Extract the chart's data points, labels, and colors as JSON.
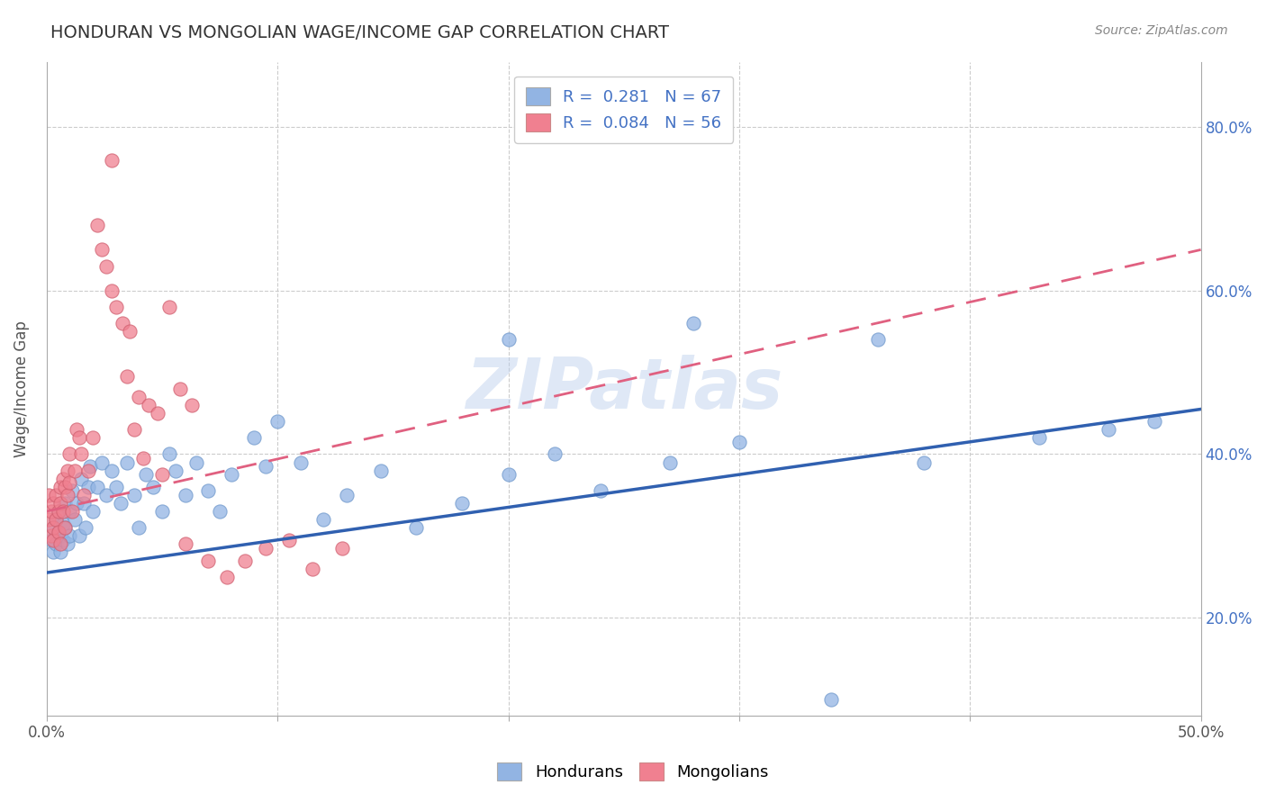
{
  "title": "HONDURAN VS MONGOLIAN WAGE/INCOME GAP CORRELATION CHART",
  "source_text": "Source: ZipAtlas.com",
  "xlabel_ticks": [
    "0.0%",
    "",
    "",
    "",
    "",
    "50.0%"
  ],
  "ylabel_ticks": [
    "20.0%",
    "40.0%",
    "60.0%",
    "80.0%"
  ],
  "xlim": [
    0.0,
    0.5
  ],
  "ylim": [
    0.08,
    0.88
  ],
  "legend1_text": "R =  0.281   N = 67",
  "legend2_text": "R =  0.084   N = 56",
  "honduran_color": "#92b4e3",
  "mongolian_color": "#f08090",
  "honduran_line_color": "#3060b0",
  "mongolian_line_color": "#e06080",
  "watermark": "ZIPatlas",
  "hondurans_label": "Hondurans",
  "mongolians_label": "Mongolians",
  "blue_line_y0": 0.255,
  "blue_line_y1": 0.455,
  "pink_line_y0": 0.33,
  "pink_line_y1": 0.65,
  "hondurans_x": [
    0.002,
    0.003,
    0.003,
    0.004,
    0.004,
    0.005,
    0.005,
    0.006,
    0.006,
    0.007,
    0.007,
    0.008,
    0.008,
    0.009,
    0.01,
    0.01,
    0.011,
    0.012,
    0.013,
    0.014,
    0.015,
    0.016,
    0.017,
    0.018,
    0.019,
    0.02,
    0.022,
    0.024,
    0.026,
    0.028,
    0.03,
    0.032,
    0.035,
    0.038,
    0.04,
    0.043,
    0.046,
    0.05,
    0.053,
    0.056,
    0.06,
    0.065,
    0.07,
    0.075,
    0.08,
    0.09,
    0.095,
    0.1,
    0.11,
    0.12,
    0.13,
    0.145,
    0.16,
    0.18,
    0.2,
    0.22,
    0.24,
    0.27,
    0.3,
    0.34,
    0.38,
    0.43,
    0.48,
    0.2,
    0.28,
    0.36,
    0.46
  ],
  "hondurans_y": [
    0.295,
    0.31,
    0.28,
    0.32,
    0.29,
    0.305,
    0.33,
    0.28,
    0.3,
    0.315,
    0.295,
    0.34,
    0.31,
    0.29,
    0.33,
    0.3,
    0.355,
    0.32,
    0.34,
    0.3,
    0.37,
    0.34,
    0.31,
    0.36,
    0.385,
    0.33,
    0.36,
    0.39,
    0.35,
    0.38,
    0.36,
    0.34,
    0.39,
    0.35,
    0.31,
    0.375,
    0.36,
    0.33,
    0.4,
    0.38,
    0.35,
    0.39,
    0.355,
    0.33,
    0.375,
    0.42,
    0.385,
    0.44,
    0.39,
    0.32,
    0.35,
    0.38,
    0.31,
    0.34,
    0.375,
    0.4,
    0.355,
    0.39,
    0.415,
    0.1,
    0.39,
    0.42,
    0.44,
    0.54,
    0.56,
    0.54,
    0.43
  ],
  "mongolians_x": [
    0.001,
    0.001,
    0.002,
    0.002,
    0.003,
    0.003,
    0.003,
    0.004,
    0.004,
    0.005,
    0.005,
    0.006,
    0.006,
    0.006,
    0.007,
    0.007,
    0.008,
    0.008,
    0.009,
    0.009,
    0.01,
    0.01,
    0.011,
    0.012,
    0.013,
    0.014,
    0.015,
    0.016,
    0.018,
    0.02,
    0.022,
    0.024,
    0.026,
    0.028,
    0.03,
    0.033,
    0.036,
    0.04,
    0.044,
    0.048,
    0.053,
    0.058,
    0.063,
    0.07,
    0.078,
    0.086,
    0.095,
    0.105,
    0.115,
    0.128,
    0.028,
    0.035,
    0.038,
    0.042,
    0.05,
    0.06
  ],
  "mongolians_y": [
    0.32,
    0.35,
    0.3,
    0.33,
    0.295,
    0.34,
    0.31,
    0.32,
    0.35,
    0.305,
    0.33,
    0.36,
    0.29,
    0.34,
    0.37,
    0.33,
    0.36,
    0.31,
    0.38,
    0.35,
    0.4,
    0.365,
    0.33,
    0.38,
    0.43,
    0.42,
    0.4,
    0.35,
    0.38,
    0.42,
    0.68,
    0.65,
    0.63,
    0.6,
    0.58,
    0.56,
    0.55,
    0.47,
    0.46,
    0.45,
    0.58,
    0.48,
    0.46,
    0.27,
    0.25,
    0.27,
    0.285,
    0.295,
    0.26,
    0.285,
    0.76,
    0.495,
    0.43,
    0.395,
    0.375,
    0.29
  ]
}
